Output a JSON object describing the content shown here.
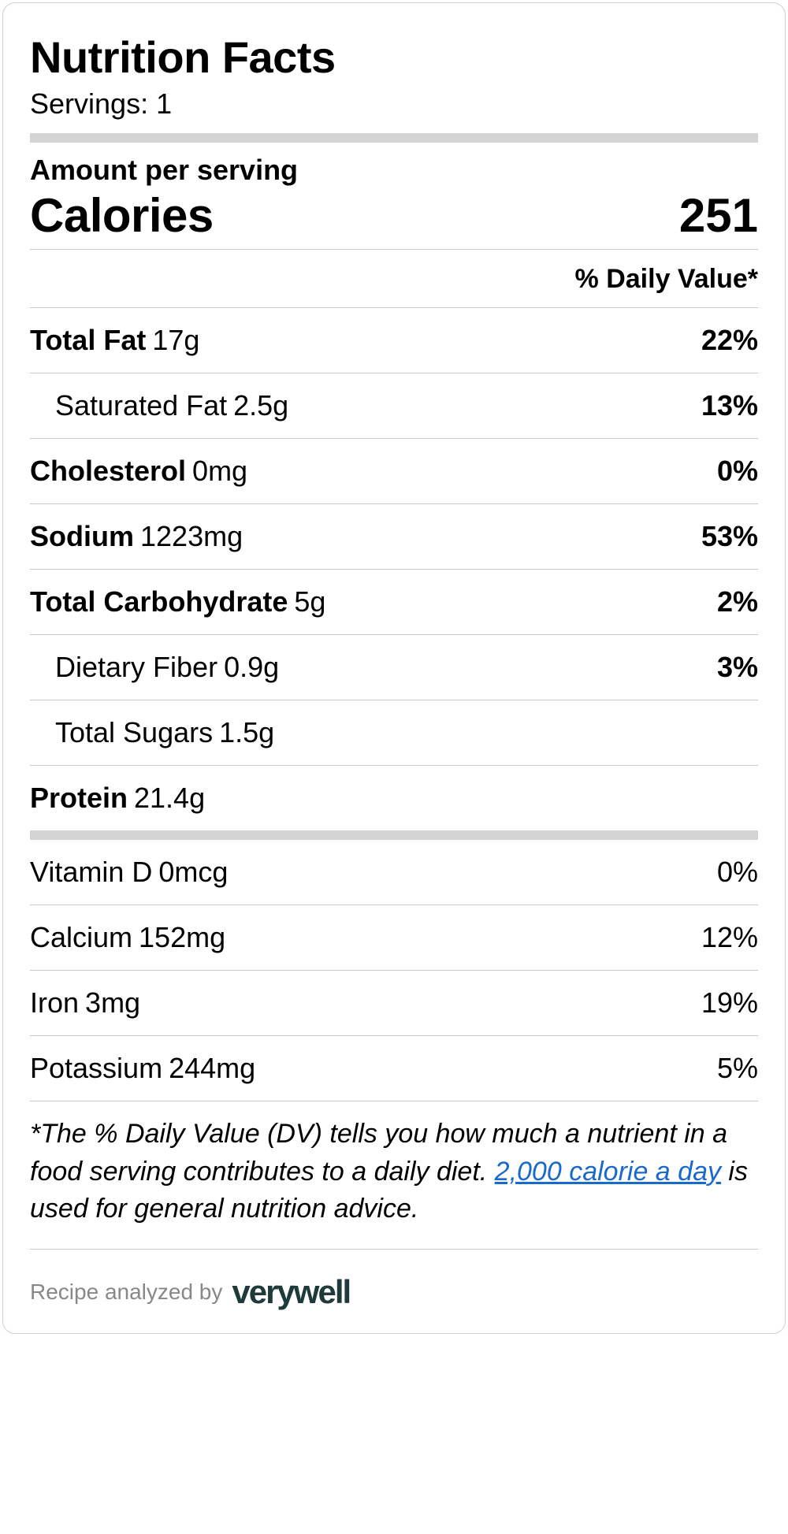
{
  "title": "Nutrition Facts",
  "servings_label": "Servings:",
  "servings_value": "1",
  "amount_per": "Amount per serving",
  "calories_label": "Calories",
  "calories_value": "251",
  "dv_header": "% Daily Value*",
  "nutrients": [
    {
      "label": "Total Fat",
      "value": "17g",
      "pct": "22%",
      "bold": true,
      "indent": false
    },
    {
      "label": "Saturated Fat",
      "value": "2.5g",
      "pct": "13%",
      "bold": false,
      "indent": true
    },
    {
      "label": "Cholesterol",
      "value": "0mg",
      "pct": "0%",
      "bold": true,
      "indent": false
    },
    {
      "label": "Sodium",
      "value": "1223mg",
      "pct": "53%",
      "bold": true,
      "indent": false
    },
    {
      "label": "Total Carbohydrate",
      "value": "5g",
      "pct": "2%",
      "bold": true,
      "indent": false
    },
    {
      "label": "Dietary Fiber",
      "value": "0.9g",
      "pct": "3%",
      "bold": false,
      "indent": true
    },
    {
      "label": "Total Sugars",
      "value": "1.5g",
      "pct": "",
      "bold": false,
      "indent": true
    },
    {
      "label": "Protein",
      "value": "21.4g",
      "pct": "",
      "bold": true,
      "indent": false
    }
  ],
  "micronutrients": [
    {
      "label": "Vitamin D",
      "value": "0mcg",
      "pct": "0%"
    },
    {
      "label": "Calcium",
      "value": "152mg",
      "pct": "12%"
    },
    {
      "label": "Iron",
      "value": "3mg",
      "pct": "19%"
    },
    {
      "label": "Potassium",
      "value": "244mg",
      "pct": "5%"
    }
  ],
  "footnote_pre": "*The % Daily Value (DV) tells you how much a nutrient in a food serving contributes to a daily diet. ",
  "footnote_link": "2,000 calorie a day",
  "footnote_post": " is used for general nutrition advice.",
  "analyzed_by": "Recipe analyzed by",
  "brand": "verywell",
  "colors": {
    "border": "#d0d0d0",
    "bar": "#d4d4d4",
    "line": "#c8c8c8",
    "text": "#000000",
    "muted": "#888888",
    "link": "#1a6acb",
    "brand": "#1e3a3a",
    "background": "#ffffff"
  }
}
